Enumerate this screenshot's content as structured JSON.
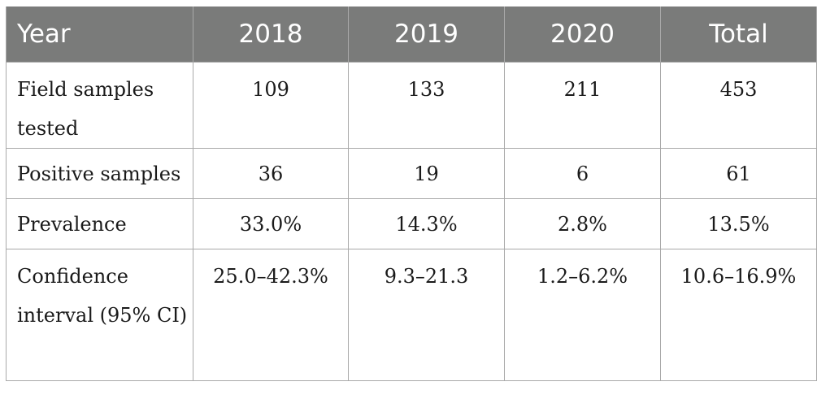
{
  "table": {
    "headers": [
      "Year",
      "2018",
      "2019",
      "2020",
      "Total"
    ],
    "rows": [
      {
        "label": "Field samples tested",
        "values": [
          "109",
          "133",
          "211",
          "453"
        ]
      },
      {
        "label": "Positive samples",
        "values": [
          "36",
          "19",
          "6",
          "61"
        ]
      },
      {
        "label": "Prevalence",
        "values": [
          "33.0%",
          "14.3%",
          "2.8%",
          "13.5%"
        ]
      },
      {
        "label": "Confidence interval (95% CI)",
        "values": [
          "25.0–42.3%",
          "9.3–21.3",
          "1.2–6.2%",
          "10.6–16.9%"
        ]
      }
    ]
  }
}
